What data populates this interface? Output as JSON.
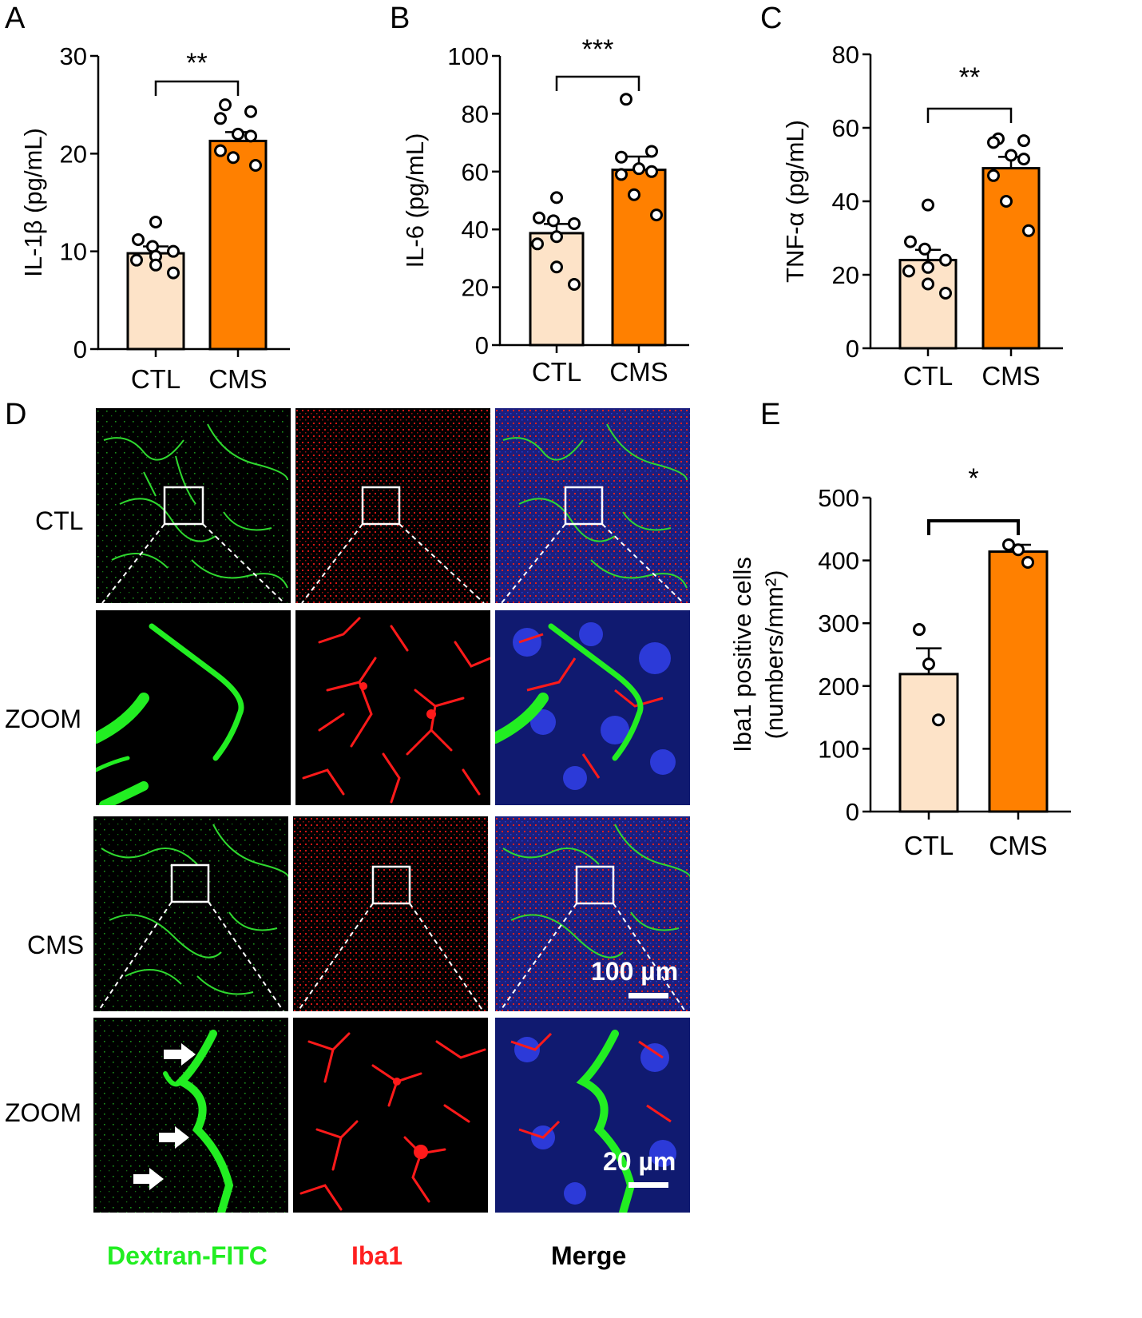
{
  "panels": {
    "A": "A",
    "B": "B",
    "C": "C",
    "D": "D",
    "E": "E"
  },
  "colors": {
    "ctl_fill": "#fde3c8",
    "cms_fill": "#ff8000",
    "green": "#22ee22",
    "red": "#ff2020",
    "blue": "#2030c0"
  },
  "chart_data": [
    {
      "panel": "A",
      "type": "bar",
      "categories": [
        "CTL",
        "CMS"
      ],
      "values": [
        9.8,
        21.3
      ],
      "errors": [
        0.7,
        0.9
      ],
      "points": [
        [
          13.0,
          11.2,
          10.5,
          10.0,
          9.5,
          9.1,
          8.6,
          7.8
        ],
        [
          25.0,
          24.3,
          23.6,
          22.0,
          21.8,
          20.3,
          19.6,
          18.8
        ]
      ],
      "ylabel": "IL-1β (pg/mL)",
      "ylim": [
        0,
        30
      ],
      "yticks": [
        0,
        10,
        20,
        30
      ],
      "significance": "**"
    },
    {
      "panel": "B",
      "type": "bar",
      "categories": [
        "CTL",
        "CMS"
      ],
      "values": [
        38.7,
        60.6
      ],
      "errors": [
        3.2,
        4.6
      ],
      "points": [
        [
          51.0,
          44.0,
          43.0,
          42.0,
          37.5,
          35.0,
          27.0,
          21.0
        ],
        [
          85.0,
          67.0,
          65.0,
          61.0,
          60.0,
          59.0,
          52.0,
          45.0
        ]
      ],
      "ylabel": "IL-6 (pg/mL)",
      "ylim": [
        0,
        100
      ],
      "yticks": [
        0,
        20,
        40,
        60,
        80,
        100
      ],
      "significance": "***"
    },
    {
      "panel": "C",
      "type": "bar",
      "categories": [
        "CTL",
        "CMS"
      ],
      "values": [
        24.0,
        49.0
      ],
      "errors": [
        2.8,
        3.1
      ],
      "points": [
        [
          39.0,
          29.0,
          27.0,
          24.0,
          22.0,
          21.0,
          17.5,
          15.0
        ],
        [
          57.0,
          56.5,
          56.0,
          52.5,
          51.5,
          47.0,
          40.0,
          32.0
        ]
      ],
      "ylabel": "TNF-α (pg/mL)",
      "ylim": [
        0,
        80
      ],
      "yticks": [
        0,
        20,
        40,
        60,
        80
      ],
      "significance": "**"
    },
    {
      "panel": "E",
      "type": "bar",
      "categories": [
        "CTL",
        "CMS"
      ],
      "values": [
        219,
        414
      ],
      "errors": [
        41,
        11
      ],
      "points": [
        [
          290,
          235,
          146
        ],
        [
          425,
          417,
          397
        ]
      ],
      "ylabel": "Iba1 positive cells",
      "ylabel2": "(numbers/mm²)",
      "ylim": [
        0,
        500
      ],
      "yticks": [
        0,
        100,
        200,
        300,
        400,
        500
      ],
      "significance": "*"
    }
  ],
  "micrograph": {
    "row_labels": [
      "CTL",
      "ZOOM",
      "CMS",
      "ZOOM"
    ],
    "column_labels": [
      "Dextran-FITC",
      "Iba1",
      "Merge"
    ],
    "scale_bar_large": "100 µm",
    "scale_bar_small": "20 µm"
  }
}
